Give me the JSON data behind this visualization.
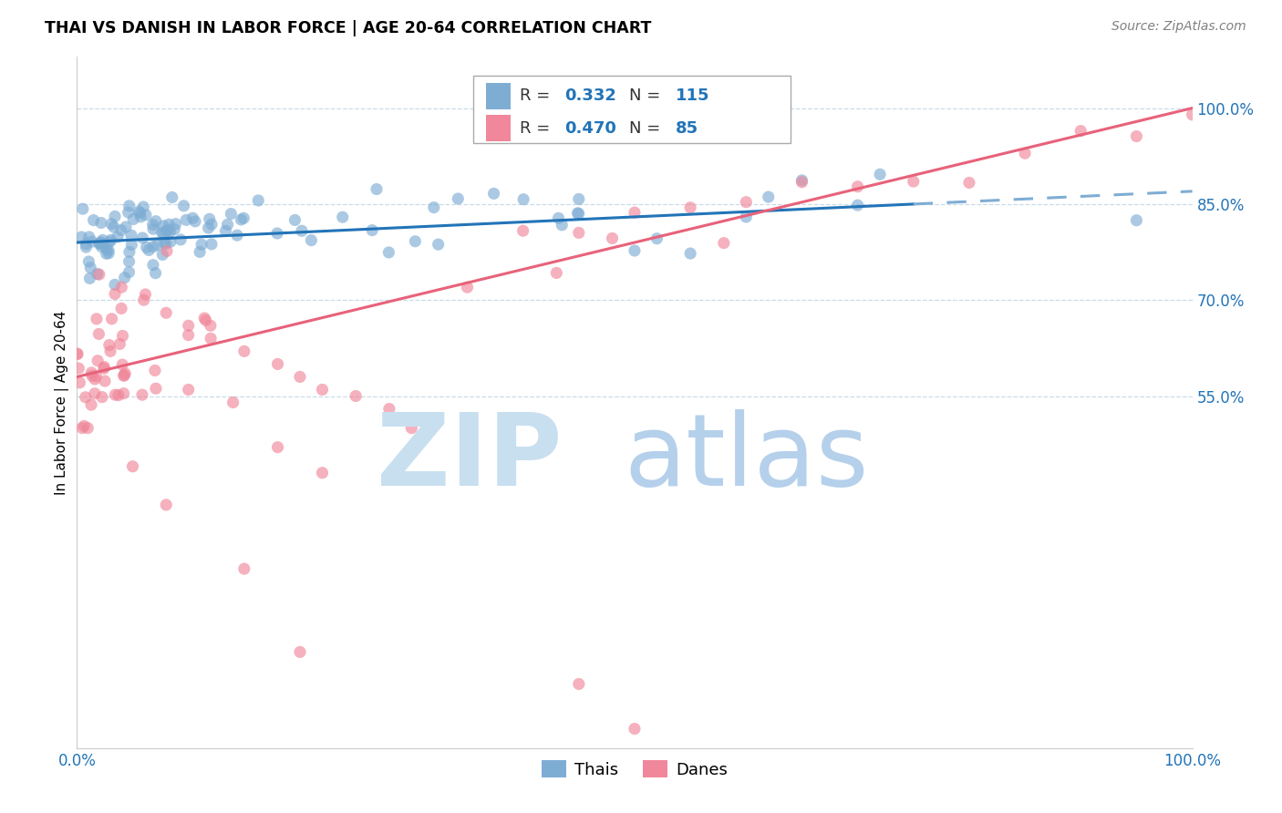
{
  "title": "THAI VS DANISH IN LABOR FORCE | AGE 20-64 CORRELATION CHART",
  "source": "Source: ZipAtlas.com",
  "ylabel": "In Labor Force | Age 20-64",
  "xlim": [
    0.0,
    1.0
  ],
  "ylim": [
    0.0,
    1.08
  ],
  "thai_color": "#7eadd4",
  "danish_color": "#f0879a",
  "thai_line_color": "#2274b8",
  "danish_line_color": "#e8627a",
  "thai_R": 0.332,
  "thai_N": 115,
  "danish_R": 0.47,
  "danish_N": 85,
  "watermark_zip_color": "#c8dff0",
  "watermark_atlas_color": "#a8c8e8",
  "legend_label_thai": "Thais",
  "legend_label_danish": "Danes",
  "right_yticks": [
    0.55,
    0.7,
    0.85,
    1.0
  ],
  "right_yticklabels": [
    "55.0%",
    "70.0%",
    "85.0%",
    "100.0%"
  ],
  "axis_label_color": "#2274b8",
  "gridline_color": "#c8dce8",
  "thai_intercept": 0.79,
  "thai_slope": 0.08,
  "danish_intercept": 0.58,
  "danish_slope": 0.42
}
